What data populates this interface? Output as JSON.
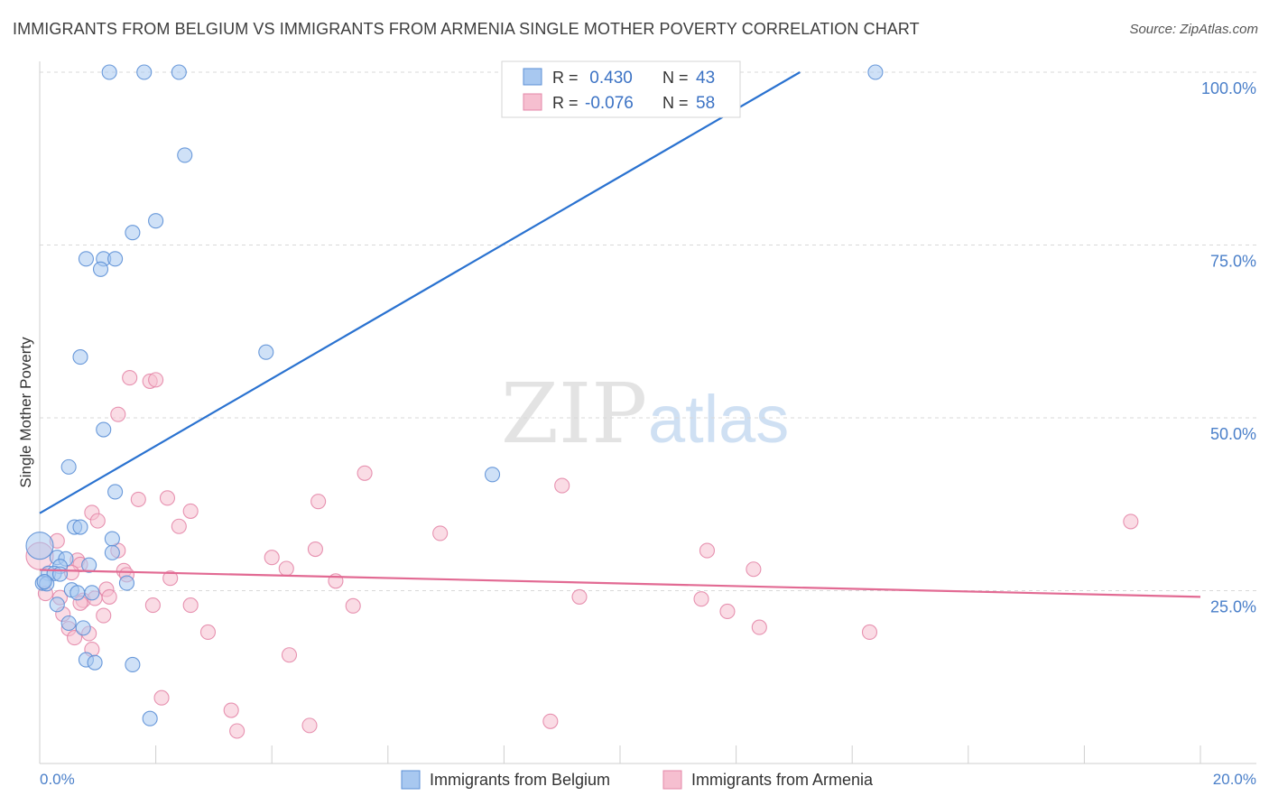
{
  "title": "IMMIGRANTS FROM BELGIUM VS IMMIGRANTS FROM ARMENIA SINGLE MOTHER POVERTY CORRELATION CHART",
  "source": "Source: ZipAtlas.com",
  "watermark": {
    "zip": "ZIP",
    "atlas": "atlas"
  },
  "colors": {
    "belgium_fill": "#a8c8f0",
    "belgium_stroke": "#5b8fd6",
    "belgium_line": "#2a72d0",
    "armenia_fill": "#f6bfd0",
    "armenia_stroke": "#e487a8",
    "armenia_line": "#e26a93",
    "axis_label": "#4a7fc9",
    "grid": "#d9d9d9"
  },
  "legend": {
    "rows": [
      {
        "r_label": "R =",
        "r_value": " 0.430",
        "n_label": "N =",
        "n_value": "43"
      },
      {
        "r_label": "R =",
        "r_value": "-0.076",
        "n_label": "N =",
        "n_value": "58"
      }
    ]
  },
  "chart_data": {
    "type": "scatter",
    "title": "IMMIGRANTS FROM BELGIUM VS IMMIGRANTS FROM ARMENIA SINGLE MOTHER POVERTY CORRELATION CHART",
    "xlabel": "",
    "ylabel": "Single Mother Poverty",
    "xlim": [
      0,
      20
    ],
    "ylim": [
      0,
      100
    ],
    "x_tick_labels": [
      "0.0%",
      "20.0%"
    ],
    "y_ticks": [
      25,
      50,
      75,
      100
    ],
    "y_tick_labels": [
      "25.0%",
      "50.0%",
      "75.0%",
      "100.0%"
    ],
    "series": [
      {
        "name": "Immigrants from Belgium",
        "color": "#a8c8f0",
        "trend": {
          "x0": 0.0,
          "y0": 36.2,
          "x1": 13.1,
          "y1": 100.0
        },
        "points": [
          {
            "x": 1.2,
            "y": 100.0
          },
          {
            "x": 1.8,
            "y": 100.0
          },
          {
            "x": 2.4,
            "y": 100.0
          },
          {
            "x": 14.4,
            "y": 100.0
          },
          {
            "x": 2.5,
            "y": 88.0
          },
          {
            "x": 2.0,
            "y": 78.5
          },
          {
            "x": 1.6,
            "y": 76.8
          },
          {
            "x": 0.8,
            "y": 73.0
          },
          {
            "x": 1.1,
            "y": 73.0
          },
          {
            "x": 1.3,
            "y": 73.0
          },
          {
            "x": 1.05,
            "y": 71.5
          },
          {
            "x": 3.9,
            "y": 59.5
          },
          {
            "x": 0.7,
            "y": 58.8
          },
          {
            "x": 1.1,
            "y": 48.3
          },
          {
            "x": 0.5,
            "y": 42.9
          },
          {
            "x": 7.8,
            "y": 41.8
          },
          {
            "x": 1.3,
            "y": 39.3
          },
          {
            "x": 0.6,
            "y": 34.2
          },
          {
            "x": 0.7,
            "y": 34.2
          },
          {
            "x": 1.25,
            "y": 32.5
          },
          {
            "x": 0.0,
            "y": 31.5
          },
          {
            "x": 1.25,
            "y": 30.5
          },
          {
            "x": 0.3,
            "y": 29.8
          },
          {
            "x": 0.45,
            "y": 29.6
          },
          {
            "x": 0.35,
            "y": 28.5
          },
          {
            "x": 0.85,
            "y": 28.7
          },
          {
            "x": 0.15,
            "y": 27.5
          },
          {
            "x": 0.25,
            "y": 27.5
          },
          {
            "x": 0.35,
            "y": 27.4
          },
          {
            "x": 0.05,
            "y": 26.1
          },
          {
            "x": 0.12,
            "y": 26.0
          },
          {
            "x": 1.5,
            "y": 26.1
          },
          {
            "x": 0.55,
            "y": 25.1
          },
          {
            "x": 0.9,
            "y": 24.7
          },
          {
            "x": 0.65,
            "y": 24.7
          },
          {
            "x": 0.3,
            "y": 23.0
          },
          {
            "x": 0.5,
            "y": 20.3
          },
          {
            "x": 0.75,
            "y": 19.6
          },
          {
            "x": 0.8,
            "y": 15.0
          },
          {
            "x": 0.95,
            "y": 14.6
          },
          {
            "x": 1.6,
            "y": 14.3
          },
          {
            "x": 1.9,
            "y": 6.5
          },
          {
            "x": 0.08,
            "y": 26.3
          }
        ]
      },
      {
        "name": "Immigrants from Armenia",
        "color": "#f6bfd0",
        "trend": {
          "x0": 0.0,
          "y0": 28.0,
          "x1": 20.0,
          "y1": 24.1
        },
        "points": [
          {
            "x": 1.55,
            "y": 55.8
          },
          {
            "x": 1.9,
            "y": 55.3
          },
          {
            "x": 2.0,
            "y": 55.5
          },
          {
            "x": 1.35,
            "y": 50.5
          },
          {
            "x": 5.6,
            "y": 42.0
          },
          {
            "x": 9.0,
            "y": 40.2
          },
          {
            "x": 1.7,
            "y": 38.2
          },
          {
            "x": 2.2,
            "y": 38.4
          },
          {
            "x": 4.8,
            "y": 37.9
          },
          {
            "x": 2.6,
            "y": 36.5
          },
          {
            "x": 0.9,
            "y": 36.3
          },
          {
            "x": 1.0,
            "y": 35.1
          },
          {
            "x": 18.8,
            "y": 35.0
          },
          {
            "x": 2.4,
            "y": 34.3
          },
          {
            "x": 6.9,
            "y": 33.3
          },
          {
            "x": 0.3,
            "y": 32.2
          },
          {
            "x": 4.75,
            "y": 31.0
          },
          {
            "x": 11.5,
            "y": 30.8
          },
          {
            "x": 1.35,
            "y": 30.8
          },
          {
            "x": 0.0,
            "y": 30.0
          },
          {
            "x": 4.0,
            "y": 29.8
          },
          {
            "x": 0.65,
            "y": 29.4
          },
          {
            "x": 0.7,
            "y": 28.8
          },
          {
            "x": 12.3,
            "y": 28.1
          },
          {
            "x": 4.25,
            "y": 28.2
          },
          {
            "x": 1.45,
            "y": 27.9
          },
          {
            "x": 0.55,
            "y": 27.6
          },
          {
            "x": 1.5,
            "y": 27.3
          },
          {
            "x": 2.25,
            "y": 26.8
          },
          {
            "x": 5.1,
            "y": 26.4
          },
          {
            "x": 1.15,
            "y": 25.2
          },
          {
            "x": 0.1,
            "y": 24.6
          },
          {
            "x": 1.2,
            "y": 24.1
          },
          {
            "x": 9.3,
            "y": 24.1
          },
          {
            "x": 11.4,
            "y": 23.8
          },
          {
            "x": 0.75,
            "y": 23.6
          },
          {
            "x": 0.7,
            "y": 23.2
          },
          {
            "x": 1.95,
            "y": 22.9
          },
          {
            "x": 2.6,
            "y": 22.9
          },
          {
            "x": 5.4,
            "y": 22.8
          },
          {
            "x": 11.85,
            "y": 22.0
          },
          {
            "x": 0.4,
            "y": 21.6
          },
          {
            "x": 1.1,
            "y": 21.4
          },
          {
            "x": 12.4,
            "y": 19.7
          },
          {
            "x": 0.5,
            "y": 19.5
          },
          {
            "x": 2.9,
            "y": 19.0
          },
          {
            "x": 14.3,
            "y": 19.0
          },
          {
            "x": 0.85,
            "y": 18.8
          },
          {
            "x": 0.6,
            "y": 18.2
          },
          {
            "x": 0.9,
            "y": 16.5
          },
          {
            "x": 4.3,
            "y": 15.7
          },
          {
            "x": 2.1,
            "y": 9.5
          },
          {
            "x": 3.3,
            "y": 7.7
          },
          {
            "x": 8.8,
            "y": 6.1
          },
          {
            "x": 4.65,
            "y": 5.5
          },
          {
            "x": 3.4,
            "y": 4.7
          },
          {
            "x": 0.35,
            "y": 24.0
          },
          {
            "x": 0.95,
            "y": 23.9
          }
        ]
      }
    ],
    "legend": [
      "Immigrants from Belgium",
      "Immigrants from Armenia"
    ],
    "legend_position": "bottom",
    "stats_position": "top-center"
  }
}
